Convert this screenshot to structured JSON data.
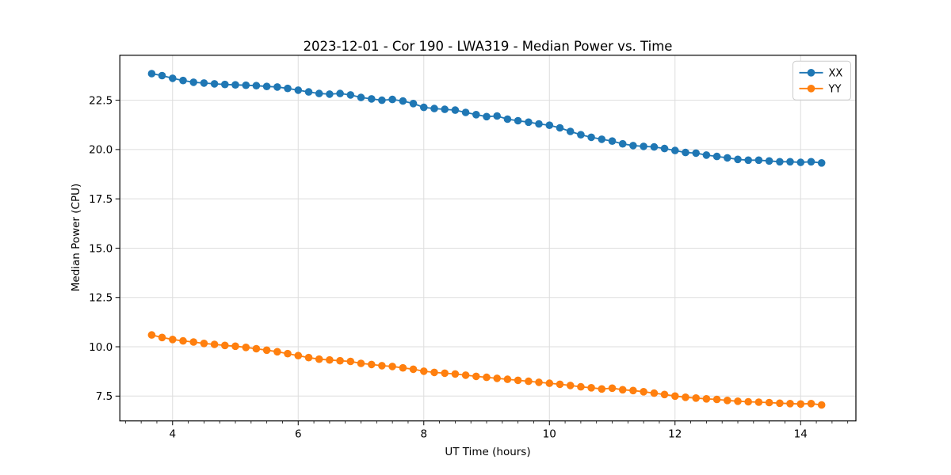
{
  "figure": {
    "title": "2023-12-01 - Cor 190 - LWA319 - Median Power vs. Time",
    "xlabel": "UT Time (hours)",
    "ylabel": "Median Power (CPU)"
  },
  "chart_data": {
    "type": "line",
    "title": "2023-12-01 - Cor 190 - LWA319 - Median Power vs. Time",
    "xlabel": "UT Time (hours)",
    "ylabel": "Median Power (CPU)",
    "xlim": [
      3.16,
      14.88
    ],
    "ylim": [
      6.24,
      24.78
    ],
    "x_major_ticks": [
      4,
      6,
      8,
      10,
      12,
      14
    ],
    "x_major_tick_labels": [
      "4",
      "6",
      "8",
      "10",
      "12",
      "14"
    ],
    "x_minor_tick_step": 0.25,
    "y_major_ticks": [
      7.5,
      10.0,
      12.5,
      15.0,
      17.5,
      20.0,
      22.5
    ],
    "y_major_tick_labels": [
      "7.5",
      "10.0",
      "12.5",
      "15.0",
      "17.5",
      "20.0",
      "22.5"
    ],
    "grid": true,
    "legend_position": "upper right",
    "marker": "circle",
    "x": [
      3.667,
      3.833,
      4.0,
      4.167,
      4.333,
      4.5,
      4.667,
      4.833,
      5.0,
      5.167,
      5.333,
      5.5,
      5.667,
      5.833,
      6.0,
      6.167,
      6.333,
      6.5,
      6.667,
      6.833,
      7.0,
      7.167,
      7.333,
      7.5,
      7.667,
      7.833,
      8.0,
      8.167,
      8.333,
      8.5,
      8.667,
      8.833,
      9.0,
      9.167,
      9.333,
      9.5,
      9.667,
      9.833,
      10.0,
      10.167,
      10.333,
      10.5,
      10.667,
      10.833,
      11.0,
      11.167,
      11.333,
      11.5,
      11.667,
      11.833,
      12.0,
      12.167,
      12.333,
      12.5,
      12.667,
      12.833,
      13.0,
      13.167,
      13.333,
      13.5,
      13.667,
      13.833,
      14.0,
      14.167,
      14.333
    ],
    "series": [
      {
        "name": "XX",
        "color": "#1f77b4",
        "values": [
          23.85,
          23.75,
          23.61,
          23.5,
          23.41,
          23.37,
          23.33,
          23.3,
          23.28,
          23.26,
          23.24,
          23.2,
          23.17,
          23.1,
          23.01,
          22.92,
          22.84,
          22.81,
          22.84,
          22.77,
          22.64,
          22.57,
          22.5,
          22.54,
          22.46,
          22.33,
          22.14,
          22.08,
          22.04,
          22.0,
          21.88,
          21.77,
          21.67,
          21.7,
          21.54,
          21.46,
          21.39,
          21.3,
          21.23,
          21.1,
          20.92,
          20.75,
          20.62,
          20.52,
          20.43,
          20.29,
          20.2,
          20.16,
          20.13,
          20.05,
          19.95,
          19.85,
          19.82,
          19.72,
          19.65,
          19.58,
          19.5,
          19.46,
          19.46,
          19.42,
          19.38,
          19.38,
          19.35,
          19.38,
          19.32
        ]
      },
      {
        "name": "YY",
        "color": "#ff7f0e",
        "values": [
          10.6,
          10.47,
          10.37,
          10.3,
          10.24,
          10.17,
          10.12,
          10.07,
          10.03,
          9.97,
          9.9,
          9.83,
          9.75,
          9.65,
          9.55,
          9.45,
          9.37,
          9.33,
          9.29,
          9.26,
          9.16,
          9.1,
          9.04,
          9.0,
          8.93,
          8.86,
          8.76,
          8.7,
          8.66,
          8.62,
          8.56,
          8.5,
          8.45,
          8.4,
          8.35,
          8.3,
          8.25,
          8.2,
          8.15,
          8.1,
          8.04,
          7.97,
          7.92,
          7.86,
          7.9,
          7.82,
          7.78,
          7.72,
          7.65,
          7.58,
          7.5,
          7.44,
          7.4,
          7.36,
          7.33,
          7.28,
          7.24,
          7.21,
          7.19,
          7.17,
          7.14,
          7.12,
          7.1,
          7.12,
          7.05
        ]
      }
    ],
    "style": {
      "grid_color": "#dddddd",
      "spine_color": "#000000",
      "tick_color": "#000000",
      "legend_border_color": "#cccccc",
      "background": "#ffffff"
    }
  }
}
